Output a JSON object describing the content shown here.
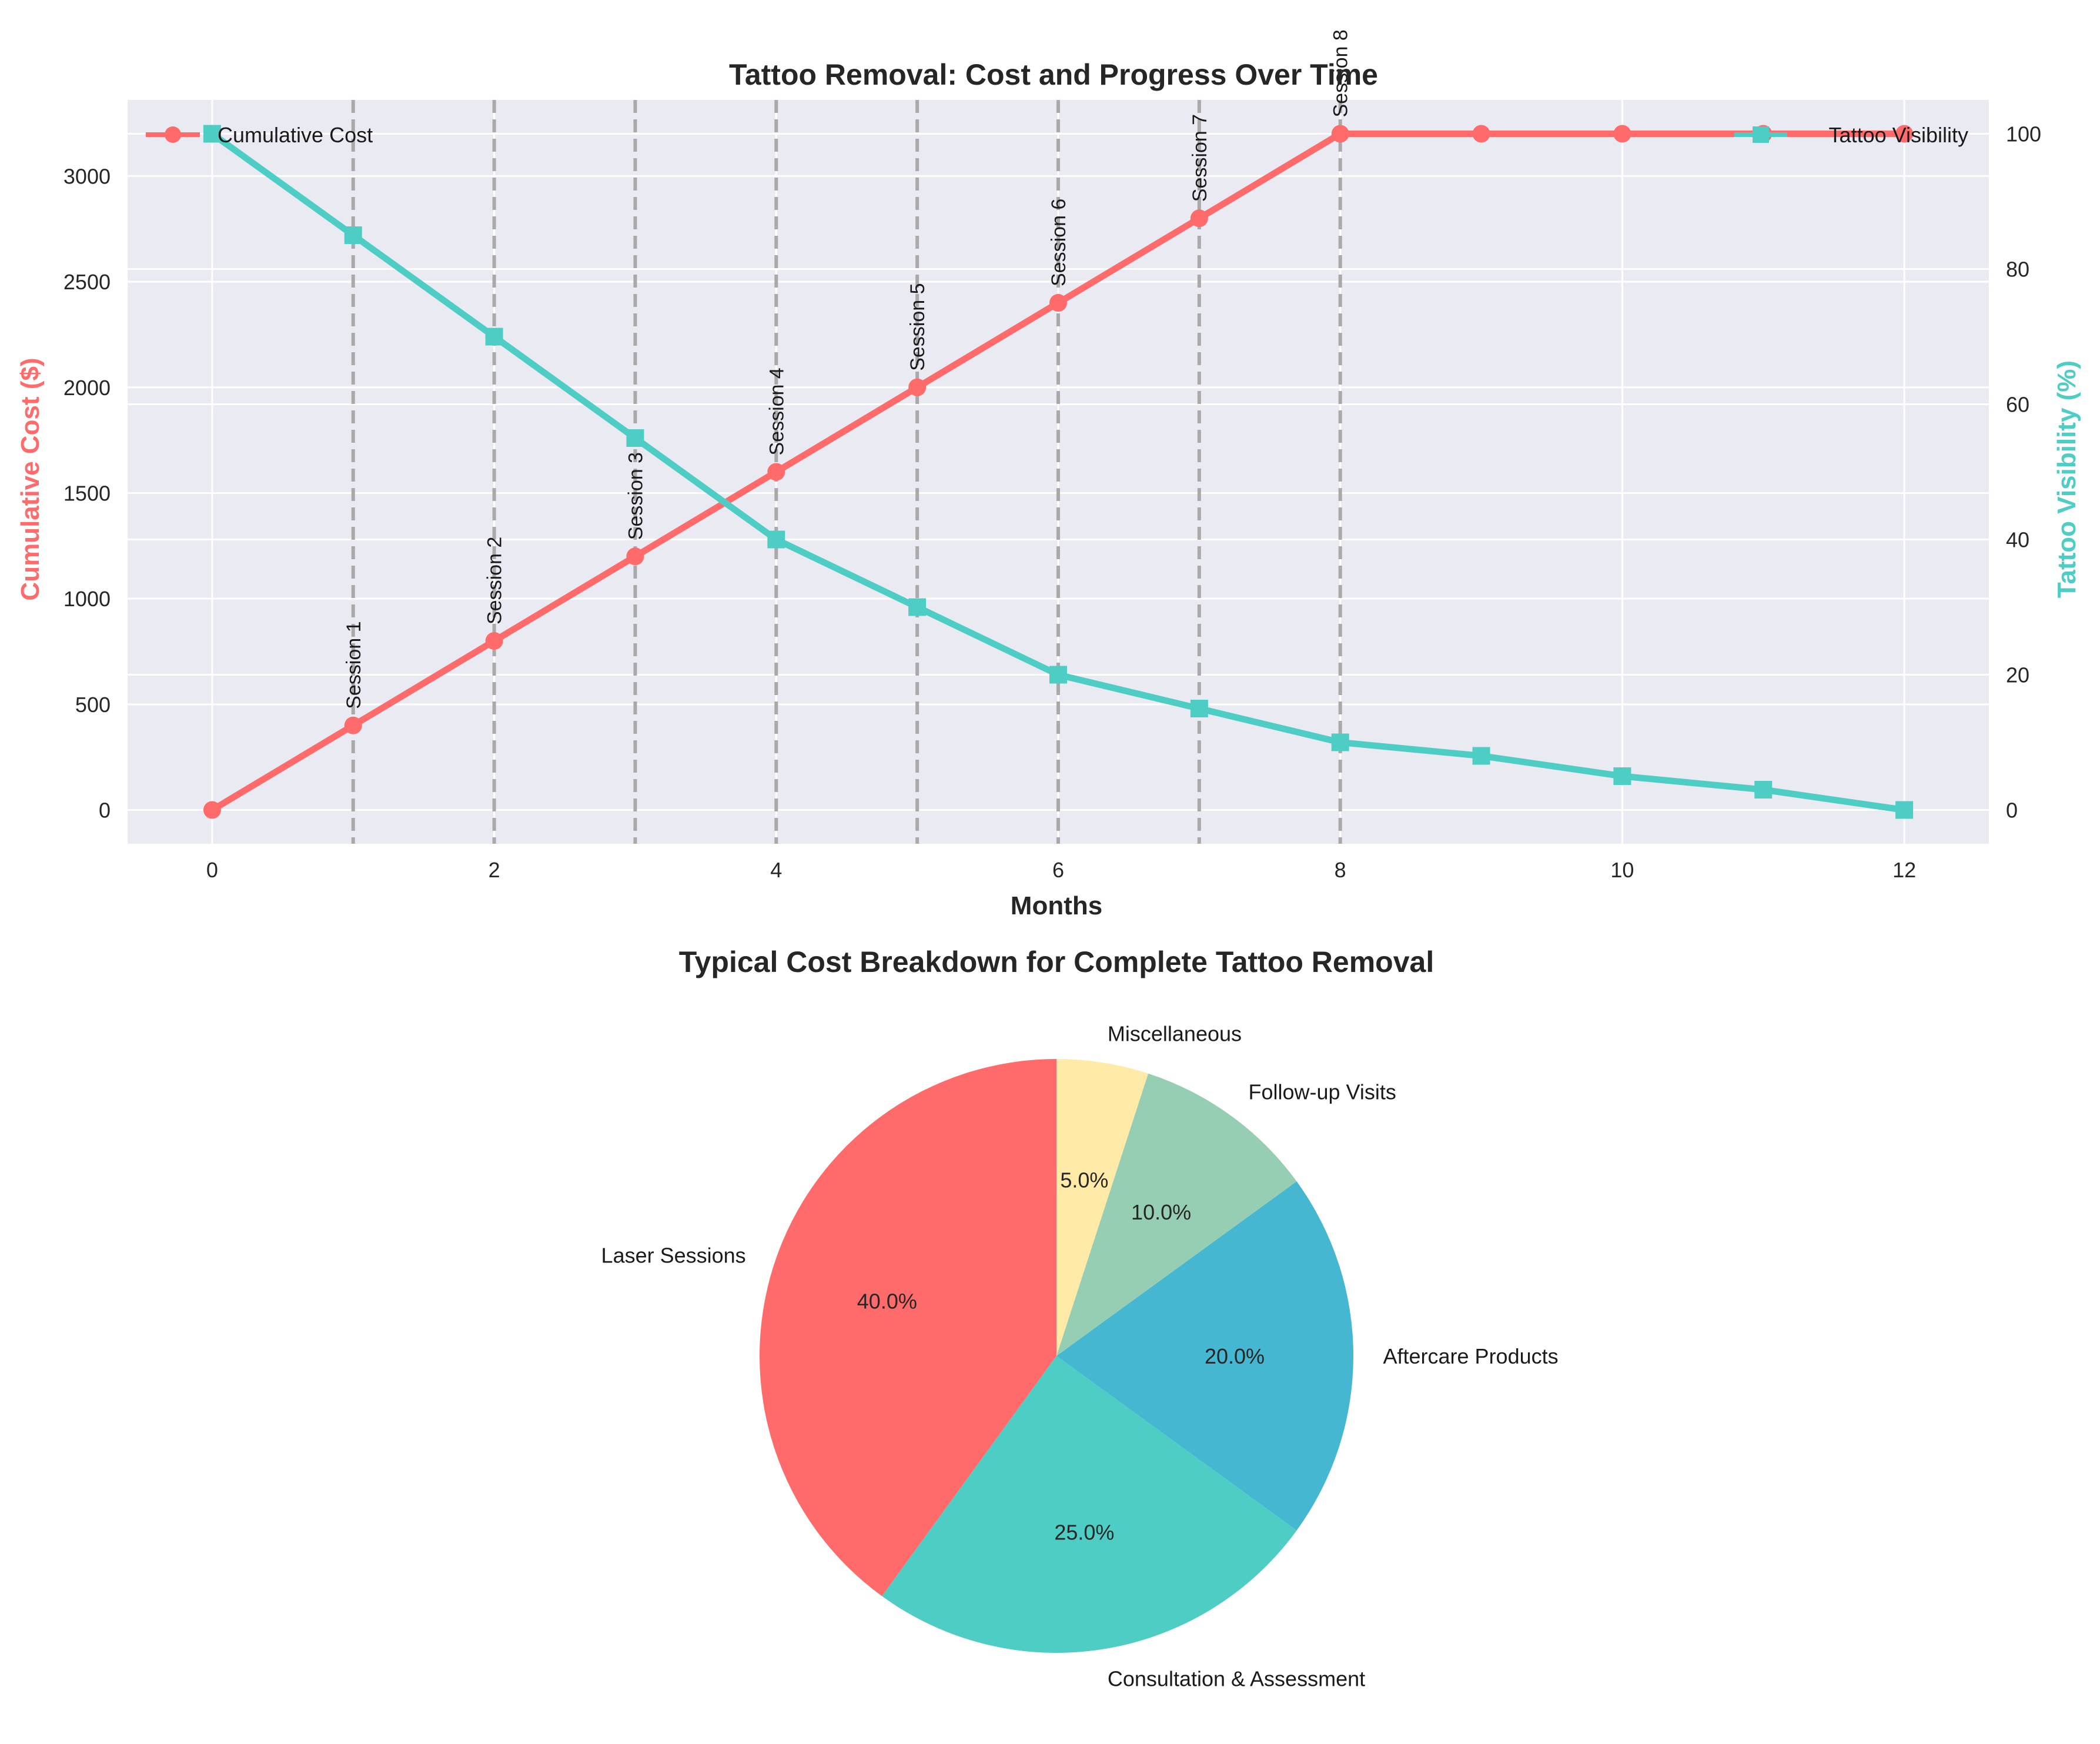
{
  "chart_data": [
    {
      "type": "line",
      "title": "Tattoo Removal: Cost and Progress Over Time",
      "xlabel": "Months",
      "ylabel_left": "Cumulative Cost ($)",
      "ylabel_right": "Tattoo Visibility (%)",
      "x": [
        0,
        1,
        2,
        3,
        4,
        5,
        6,
        7,
        8,
        9,
        10,
        11,
        12
      ],
      "x_ticks": [
        0,
        2,
        4,
        6,
        8,
        10,
        12
      ],
      "xlim": [
        -0.6,
        12.6
      ],
      "ylim_left": [
        -160,
        3360
      ],
      "ylim_right": [
        -5,
        105
      ],
      "y_ticks_left": [
        0,
        500,
        1000,
        1500,
        2000,
        2500,
        3000
      ],
      "y_ticks_right": [
        0,
        20,
        40,
        60,
        80,
        100
      ],
      "grid": true,
      "series": [
        {
          "name": "Cumulative Cost",
          "axis": "left",
          "color": "#FF6B6B",
          "marker": "circle",
          "values": [
            0,
            400,
            800,
            1200,
            1600,
            2000,
            2400,
            2800,
            3200,
            3200,
            3200,
            3200,
            3200
          ]
        },
        {
          "name": "Tattoo Visibility",
          "axis": "right",
          "color": "#4ECDC4",
          "marker": "square",
          "values": [
            100,
            85,
            70,
            55,
            40,
            30,
            20,
            15,
            10,
            8,
            5,
            3,
            0
          ]
        }
      ],
      "sessions": [
        {
          "x": 1,
          "label": "Session 1"
        },
        {
          "x": 2,
          "label": "Session 2"
        },
        {
          "x": 3,
          "label": "Session 3"
        },
        {
          "x": 4,
          "label": "Session 4"
        },
        {
          "x": 5,
          "label": "Session 5"
        },
        {
          "x": 6,
          "label": "Session 6"
        },
        {
          "x": 7,
          "label": "Session 7"
        },
        {
          "x": 8,
          "label": "Session 8"
        }
      ],
      "legend_left": "upper left",
      "legend_right": "upper right"
    },
    {
      "type": "pie",
      "title": "Typical Cost Breakdown for Complete Tattoo Removal",
      "start_angle_deg": 90,
      "slices": [
        {
          "label": "Laser Sessions",
          "value": 40,
          "pct": "40.0%",
          "color": "#FF6B6B"
        },
        {
          "label": "Consultation & Assessment",
          "value": 25,
          "pct": "25.0%",
          "color": "#4ECDC4"
        },
        {
          "label": "Aftercare Products",
          "value": 20,
          "pct": "20.0%",
          "color": "#45B7D1"
        },
        {
          "label": "Follow-up Visits",
          "value": 10,
          "pct": "10.0%",
          "color": "#96CEB4"
        },
        {
          "label": "Miscellaneous",
          "value": 5,
          "pct": "5.0%",
          "color": "#FFEAA7"
        }
      ]
    }
  ]
}
